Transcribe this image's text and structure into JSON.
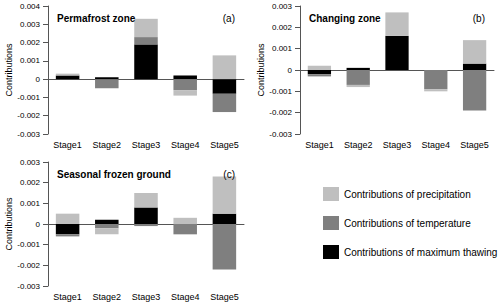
{
  "chart_data": [
    {
      "type": "bar",
      "title": "Permafrost zone",
      "annotations": [
        "(a)"
      ],
      "y_label": "Contributions",
      "categories": [
        "Stage1",
        "Stage2",
        "Stage3",
        "Stage4",
        "Stage5"
      ],
      "series": [
        {
          "name": "Contributions of precipitation",
          "color": "#bfbfbf",
          "values": [
            0.0001,
            0,
            0.001,
            -0.0003,
            0.0013
          ]
        },
        {
          "name": "Contributions of temperature",
          "color": "#7f7f7f",
          "values": [
            0,
            -0.0005,
            0.0004,
            -0.0006,
            -0.001
          ]
        },
        {
          "name": "Contributions of maximum thawing depth",
          "color": "#000000",
          "values": [
            0.0002,
            0.0001,
            0.0019,
            0.0002,
            -0.0008
          ]
        }
      ],
      "ylim": [
        -0.003,
        0.004
      ],
      "yticks": [
        -0.003,
        -0.002,
        -0.001,
        0,
        0.001,
        0.002,
        0.003,
        0.004
      ],
      "stacked": true,
      "grid": false
    },
    {
      "type": "bar",
      "title": "Changing zone",
      "annotations": [
        "(b)"
      ],
      "y_label": "Contributions",
      "categories": [
        "Stage1",
        "Stage2",
        "Stage3",
        "Stage4",
        "Stage5"
      ],
      "series": [
        {
          "name": "Contributions of precipitation",
          "color": "#bfbfbf",
          "values": [
            0.0002,
            -0.0001,
            0.0011,
            -0.0001,
            0.0011
          ]
        },
        {
          "name": "Contributions of temperature",
          "color": "#7f7f7f",
          "values": [
            -0.0001,
            -0.0007,
            0,
            -0.0009,
            -0.0019
          ]
        },
        {
          "name": "Contributions of maximum thawing depth",
          "color": "#000000",
          "values": [
            -0.0002,
            0.0001,
            0.0016,
            0,
            0.0003
          ]
        }
      ],
      "ylim": [
        -0.003,
        0.003
      ],
      "yticks": [
        -0.003,
        -0.002,
        -0.001,
        0,
        0.001,
        0.002,
        0.003
      ],
      "stacked": true,
      "grid": false
    },
    {
      "type": "bar",
      "title": "Seasonal frozen ground",
      "annotations": [
        "(c)"
      ],
      "y_label": "Contributions",
      "categories": [
        "Stage1",
        "Stage2",
        "Stage3",
        "Stage4",
        "Stage5"
      ],
      "series": [
        {
          "name": "Contributions of precipitation",
          "color": "#bfbfbf",
          "values": [
            0.0005,
            -0.0003,
            0.0007,
            0.0003,
            0.0018
          ]
        },
        {
          "name": "Contributions of temperature",
          "color": "#7f7f7f",
          "values": [
            -0.0001,
            -0.0002,
            -0.0001,
            -0.0005,
            -0.0022
          ]
        },
        {
          "name": "Contributions of maximum thawing depth",
          "color": "#000000",
          "values": [
            -0.0005,
            0.0002,
            0.0008,
            0,
            0.0005
          ]
        }
      ],
      "ylim": [
        -0.003,
        0.003
      ],
      "yticks": [
        -0.003,
        -0.002,
        -0.001,
        0,
        0.001,
        0.002,
        0.003
      ],
      "stacked": true,
      "grid": false,
      "legend": "lower right"
    }
  ]
}
